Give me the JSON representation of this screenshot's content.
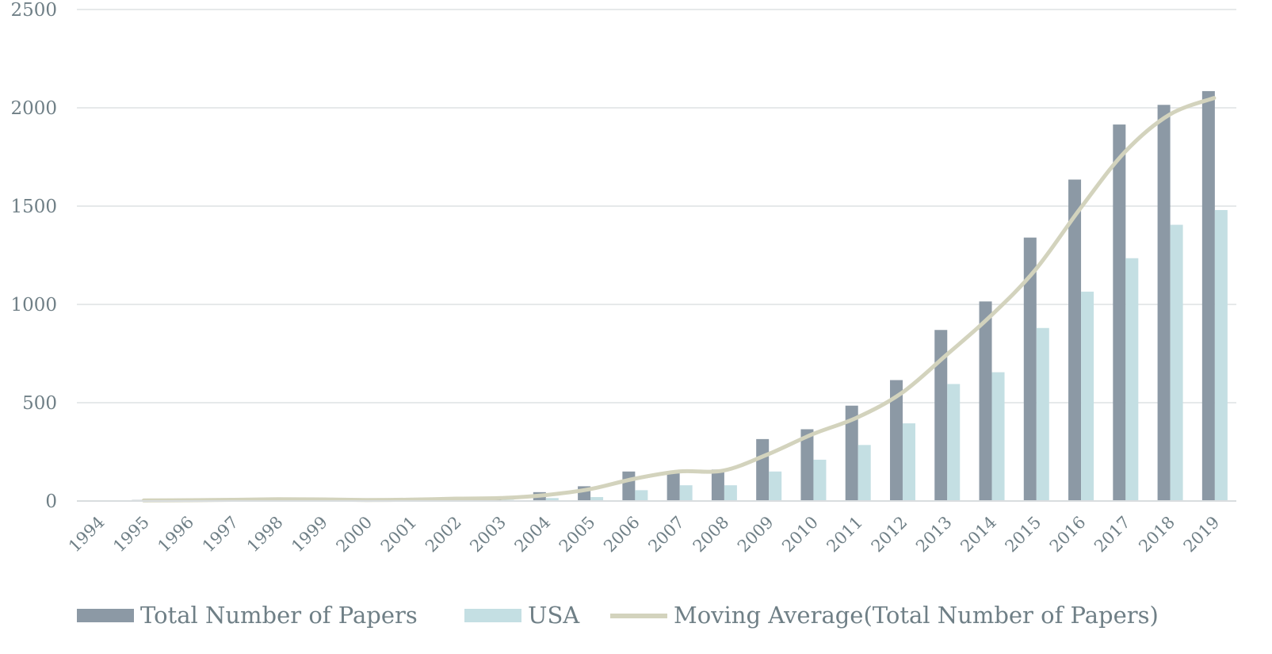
{
  "chart_data": {
    "type": "bar",
    "categories": [
      "1994",
      "1995",
      "1996",
      "1997",
      "1998",
      "1999",
      "2000",
      "2001",
      "2002",
      "2003",
      "2004",
      "2005",
      "2006",
      "2007",
      "2008",
      "2009",
      "2010",
      "2011",
      "2012",
      "2013",
      "2014",
      "2015",
      "2016",
      "2017",
      "2018",
      "2019"
    ],
    "series": [
      {
        "name": "Total Number of Papers",
        "type": "bar",
        "values": [
          0,
          5,
          3,
          8,
          10,
          5,
          5,
          8,
          15,
          15,
          45,
          75,
          150,
          150,
          160,
          315,
          365,
          485,
          615,
          870,
          1015,
          1340,
          1635,
          1915,
          2015,
          2085
        ]
      },
      {
        "name": "USA",
        "type": "bar",
        "values": [
          0,
          3,
          1,
          3,
          5,
          2,
          2,
          3,
          6,
          6,
          15,
          20,
          55,
          80,
          80,
          150,
          210,
          285,
          395,
          595,
          655,
          880,
          1065,
          1235,
          1405,
          1480
        ]
      },
      {
        "name": "Moving Average(Total Number of Papers)",
        "type": "line",
        "values": [
          null,
          3,
          4,
          6,
          9,
          8,
          5,
          7,
          12,
          15,
          30,
          60,
          113,
          150,
          155,
          238,
          340,
          425,
          550,
          743,
          943,
          1178,
          1488,
          1775,
          1965,
          2050
        ]
      }
    ],
    "ylim": [
      0,
      2500
    ],
    "yticks": [
      "0",
      "500",
      "1000",
      "1500",
      "2000",
      "2500"
    ],
    "grid": true,
    "legend_position": "bottom",
    "colors": {
      "total": "#8c99a5",
      "usa": "#c4dfe3",
      "moving_average": "#d3d3bd",
      "grid": "#e6e9ea",
      "text": "#6f7f86"
    }
  }
}
